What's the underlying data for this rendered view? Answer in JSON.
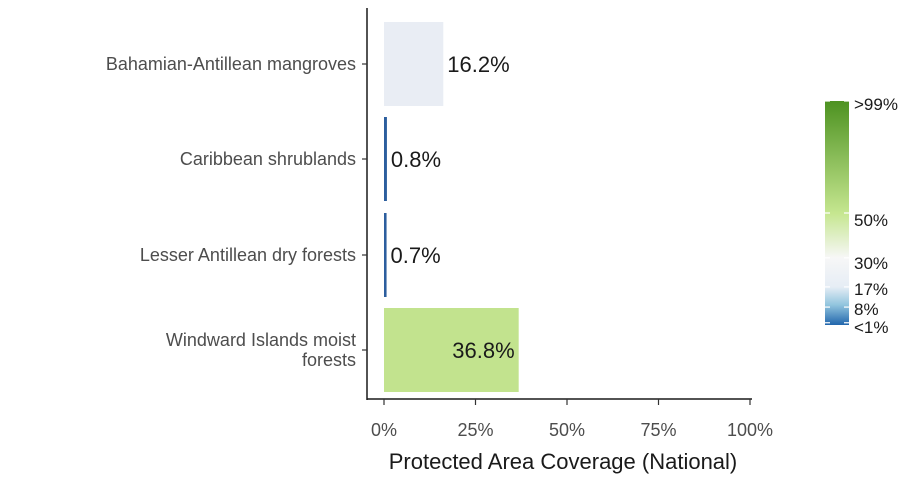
{
  "chart_data": {
    "type": "bar",
    "orientation": "horizontal",
    "title": "",
    "xlabel": "Protected Area Coverage (National)",
    "ylabel": "",
    "xlim": [
      0,
      100
    ],
    "x_ticks": [
      0,
      25,
      50,
      75,
      100
    ],
    "x_tick_labels": [
      "0%",
      "25%",
      "50%",
      "75%",
      "100%"
    ],
    "categories": [
      [
        "Bahamian-Antillean mangroves"
      ],
      [
        "Caribbean shrublands"
      ],
      [
        "Lesser Antillean dry forests"
      ],
      [
        "Windward Islands moist",
        "forests"
      ]
    ],
    "values": [
      16.2,
      0.8,
      0.7,
      36.8
    ],
    "value_labels": [
      "16.2%",
      "0.8%",
      "0.7%",
      "36.8%"
    ],
    "bar_colors": [
      "#e9edf4",
      "#2c5e9e",
      "#2c5e9e",
      "#c2e38e"
    ],
    "grid": false,
    "legend": {
      "placement": "right",
      "type": "colorbar",
      "labels": [
        ">99%",
        "50%",
        "30%",
        "17%",
        "8%",
        "<1%"
      ],
      "breaks": [
        100,
        50,
        30,
        17,
        8,
        1
      ],
      "colors": {
        "low": "#2166ac",
        "mid": "#f7f7f7",
        "high": "#4d9221"
      }
    }
  }
}
